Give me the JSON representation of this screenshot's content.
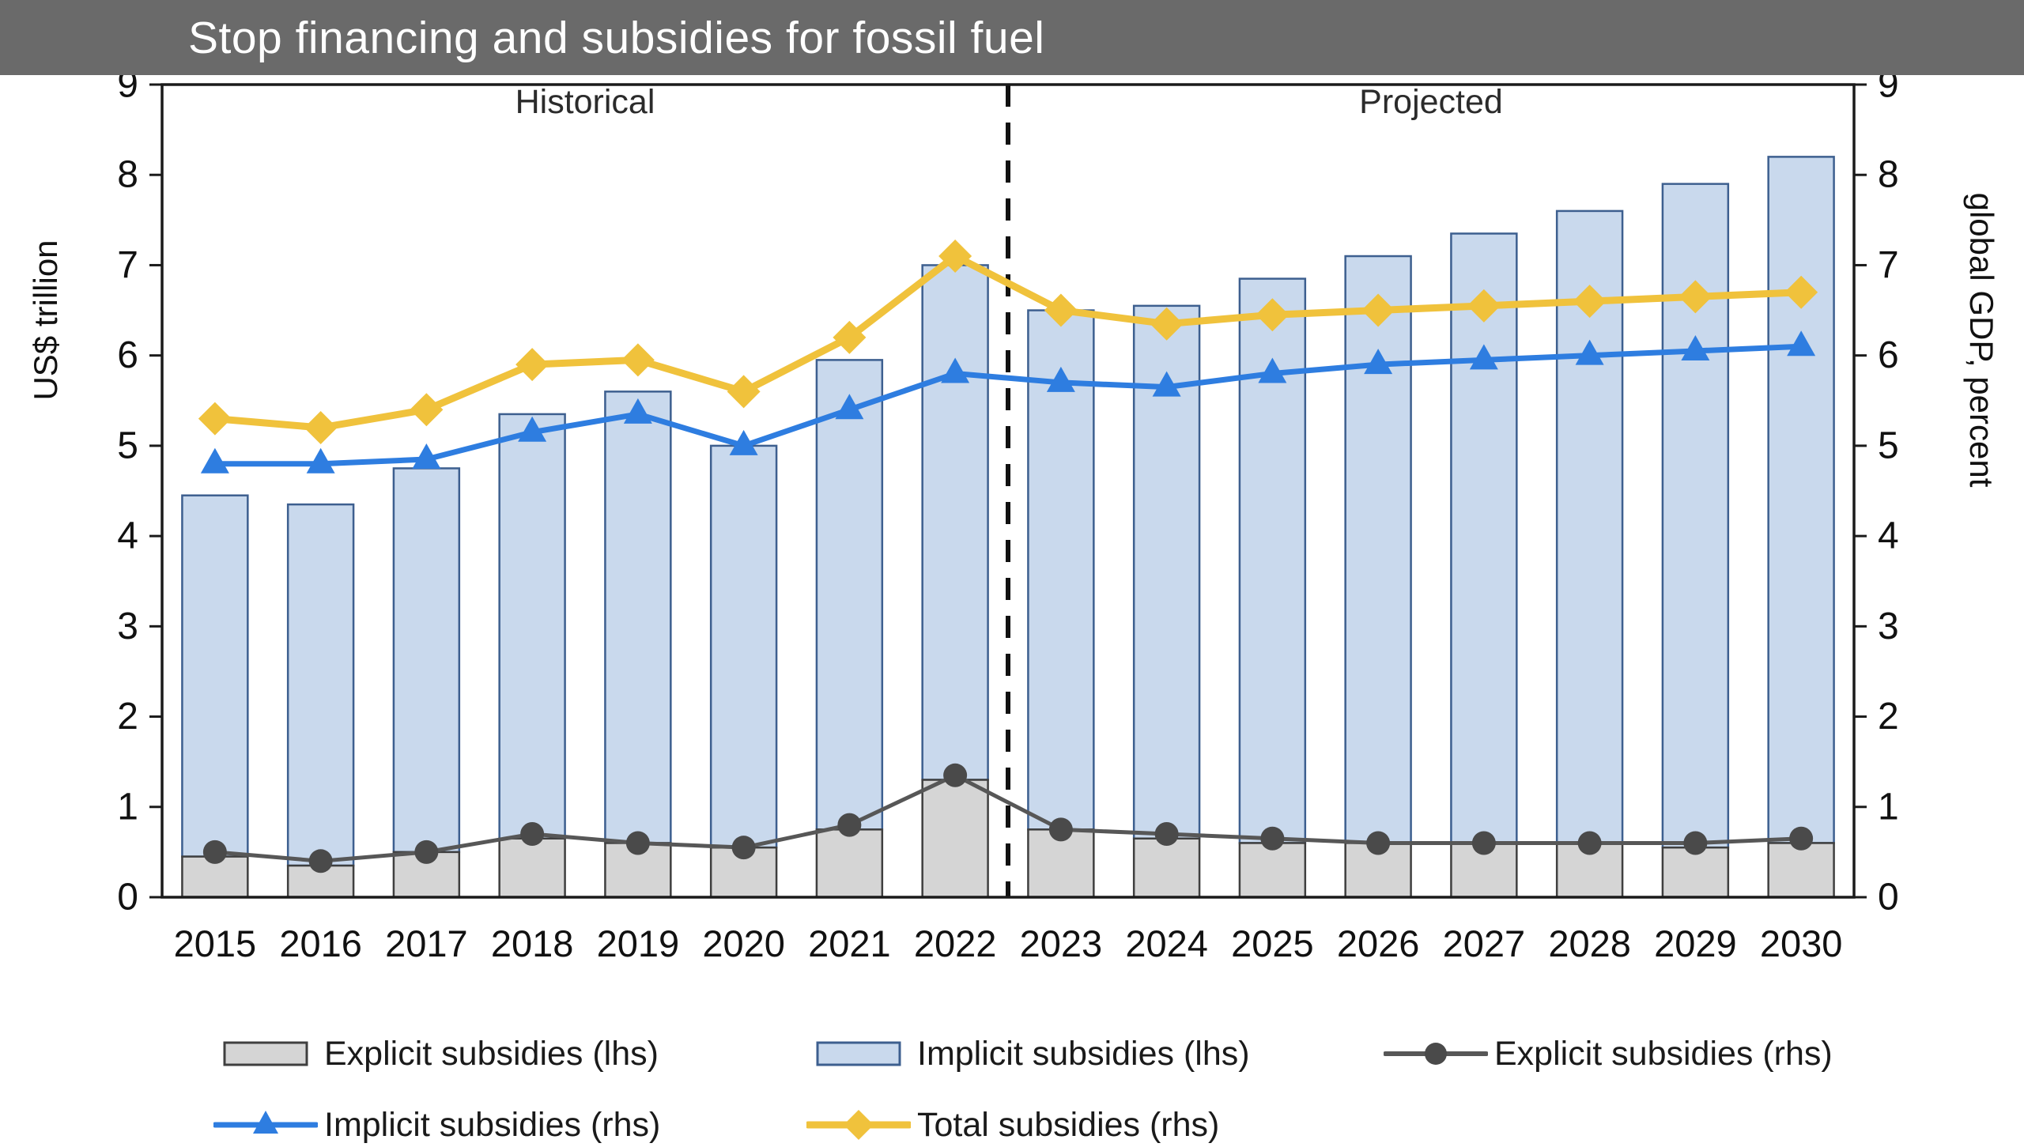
{
  "header": {
    "title": "Stop financing and subsidies for fossil fuel",
    "bg_color": "#6a6a6a"
  },
  "chart_data": {
    "type": "bar+line",
    "categories": [
      "2015",
      "2016",
      "2017",
      "2018",
      "2019",
      "2020",
      "2021",
      "2022",
      "2023",
      "2024",
      "2025",
      "2026",
      "2027",
      "2028",
      "2029",
      "2030"
    ],
    "left_axis": {
      "label": "US$ trillion",
      "min": 0,
      "max": 9,
      "ticks": [
        0,
        1,
        2,
        3,
        4,
        5,
        6,
        7,
        8,
        9
      ]
    },
    "right_axis": {
      "label": "global GDP, percent",
      "min": 0,
      "max": 9,
      "ticks": [
        0,
        1,
        2,
        3,
        4,
        5,
        6,
        7,
        8,
        9
      ]
    },
    "annotations": {
      "historical": "Historical",
      "projected": "Projected"
    },
    "divider_after_index": 7,
    "grid": false,
    "legend_position": "bottom",
    "series": [
      {
        "id": "explicit-lhs",
        "name": "Explicit subsidies (lhs)",
        "type": "bar",
        "axis": "left",
        "color": "#d5d5d5",
        "border": "#3f3f3f",
        "values": [
          0.45,
          0.35,
          0.5,
          0.65,
          0.6,
          0.55,
          0.75,
          1.3,
          0.75,
          0.65,
          0.6,
          0.6,
          0.6,
          0.6,
          0.55,
          0.6
        ]
      },
      {
        "id": "implicit-lhs",
        "name": "Implicit subsidies (lhs)",
        "type": "bar",
        "axis": "left",
        "color": "#c9d9ed",
        "border": "#3d5f8f",
        "values": [
          4.0,
          4.0,
          4.25,
          4.7,
          5.0,
          4.45,
          5.2,
          5.7,
          5.75,
          5.9,
          6.25,
          6.5,
          6.75,
          7.0,
          7.35,
          7.6
        ]
      },
      {
        "id": "explicit-rhs",
        "name": "Explicit subsidies (rhs)",
        "type": "line",
        "axis": "right",
        "marker": "circle",
        "color": "#575757",
        "marker_color": "#4a4a4a",
        "width": 5,
        "values": [
          0.5,
          0.4,
          0.5,
          0.7,
          0.6,
          0.55,
          0.8,
          1.35,
          0.75,
          0.7,
          0.65,
          0.6,
          0.6,
          0.6,
          0.6,
          0.65
        ]
      },
      {
        "id": "implicit-rhs",
        "name": "Implicit subsidies (rhs)",
        "type": "line",
        "axis": "right",
        "marker": "triangle",
        "color": "#2e7de0",
        "width": 7,
        "values": [
          4.8,
          4.8,
          4.85,
          5.15,
          5.35,
          5.0,
          5.4,
          5.8,
          5.7,
          5.65,
          5.8,
          5.9,
          5.95,
          6.0,
          6.05,
          6.1
        ]
      },
      {
        "id": "total-rhs",
        "name": "Total subsidies (rhs)",
        "type": "line",
        "axis": "right",
        "marker": "diamond",
        "color": "#f0c23c",
        "width": 9,
        "values": [
          5.3,
          5.2,
          5.4,
          5.9,
          5.95,
          5.6,
          6.2,
          7.1,
          6.5,
          6.35,
          6.45,
          6.5,
          6.55,
          6.6,
          6.65,
          6.7
        ]
      }
    ]
  }
}
